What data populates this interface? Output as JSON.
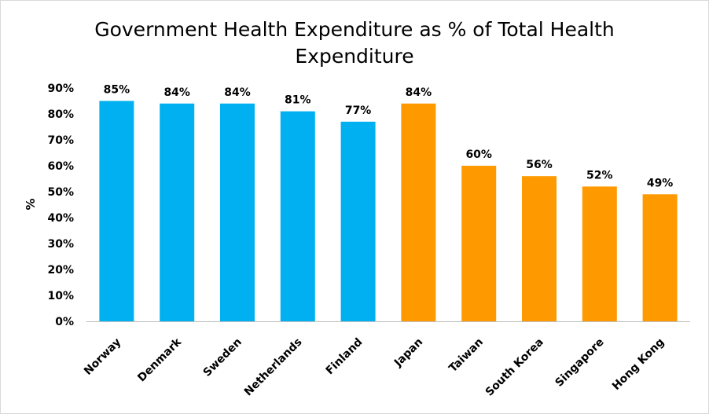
{
  "chart_data": {
    "type": "bar",
    "title_lines": [
      "Government Health Expenditure as % of Total Health",
      "Expenditure"
    ],
    "xlabel": "",
    "ylabel": "%",
    "ylim": [
      0,
      90
    ],
    "yticks": [
      "0%",
      "10%",
      "20%",
      "30%",
      "40%",
      "50%",
      "60%",
      "70%",
      "80%",
      "90%"
    ],
    "yticks_values": [
      0,
      10,
      20,
      30,
      40,
      50,
      60,
      70,
      80,
      90
    ],
    "categories": [
      "Norway",
      "Denmark",
      "Sweden",
      "Netherlands",
      "Finland",
      "Japan",
      "Taiwan",
      "South Korea",
      "Singapore",
      "Hong Kong"
    ],
    "values": [
      85,
      84,
      84,
      81,
      77,
      84,
      60,
      56,
      52,
      49
    ],
    "data_labels": [
      "85%",
      "84%",
      "84%",
      "81%",
      "77%",
      "84%",
      "60%",
      "56%",
      "52%",
      "49%"
    ],
    "colors": [
      "#00b0f0",
      "#00b0f0",
      "#00b0f0",
      "#00b0f0",
      "#00b0f0",
      "#ff9900",
      "#ff9900",
      "#ff9900",
      "#ff9900",
      "#ff9900"
    ],
    "grid": false,
    "legend": "none"
  }
}
